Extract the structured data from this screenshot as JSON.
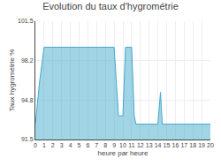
{
  "chart_data": {
    "type": "area",
    "title": "Evolution du taux d'hygrométrie",
    "xlabel": "heure par heure",
    "ylabel": "Taux hygrométrie %",
    "x": [
      0,
      0.5,
      1,
      2,
      3,
      4,
      5,
      6,
      7,
      8,
      9,
      9.5,
      10,
      10.3,
      11,
      11.3,
      11.5,
      12,
      12.5,
      13,
      13.5,
      14,
      14.3,
      14.5,
      15,
      15.3,
      15.5,
      16,
      16.3,
      16.5,
      17,
      17.5,
      18,
      19,
      20
    ],
    "values": [
      92.8,
      96.5,
      99.3,
      99.3,
      99.3,
      99.3,
      99.3,
      99.3,
      99.3,
      99.3,
      99.3,
      93.5,
      93.5,
      99.3,
      99.3,
      93.5,
      92.8,
      92.8,
      92.8,
      92.8,
      92.8,
      92.8,
      95.5,
      92.8,
      92.8,
      92.8,
      92.8,
      92.8,
      92.8,
      92.8,
      92.8,
      92.8,
      92.8,
      92.8,
      92.8
    ],
    "color": "#44aacc",
    "xlim": [
      0,
      20
    ],
    "ylim": [
      91.5,
      101.5
    ],
    "xticks": [
      0,
      1,
      2,
      3,
      4,
      5,
      6,
      7,
      8,
      9,
      10,
      11,
      12,
      13,
      14,
      15,
      16,
      17,
      18,
      19,
      20
    ],
    "yticks": [
      91.5,
      94.8,
      98.2,
      101.5
    ],
    "grid": true
  }
}
